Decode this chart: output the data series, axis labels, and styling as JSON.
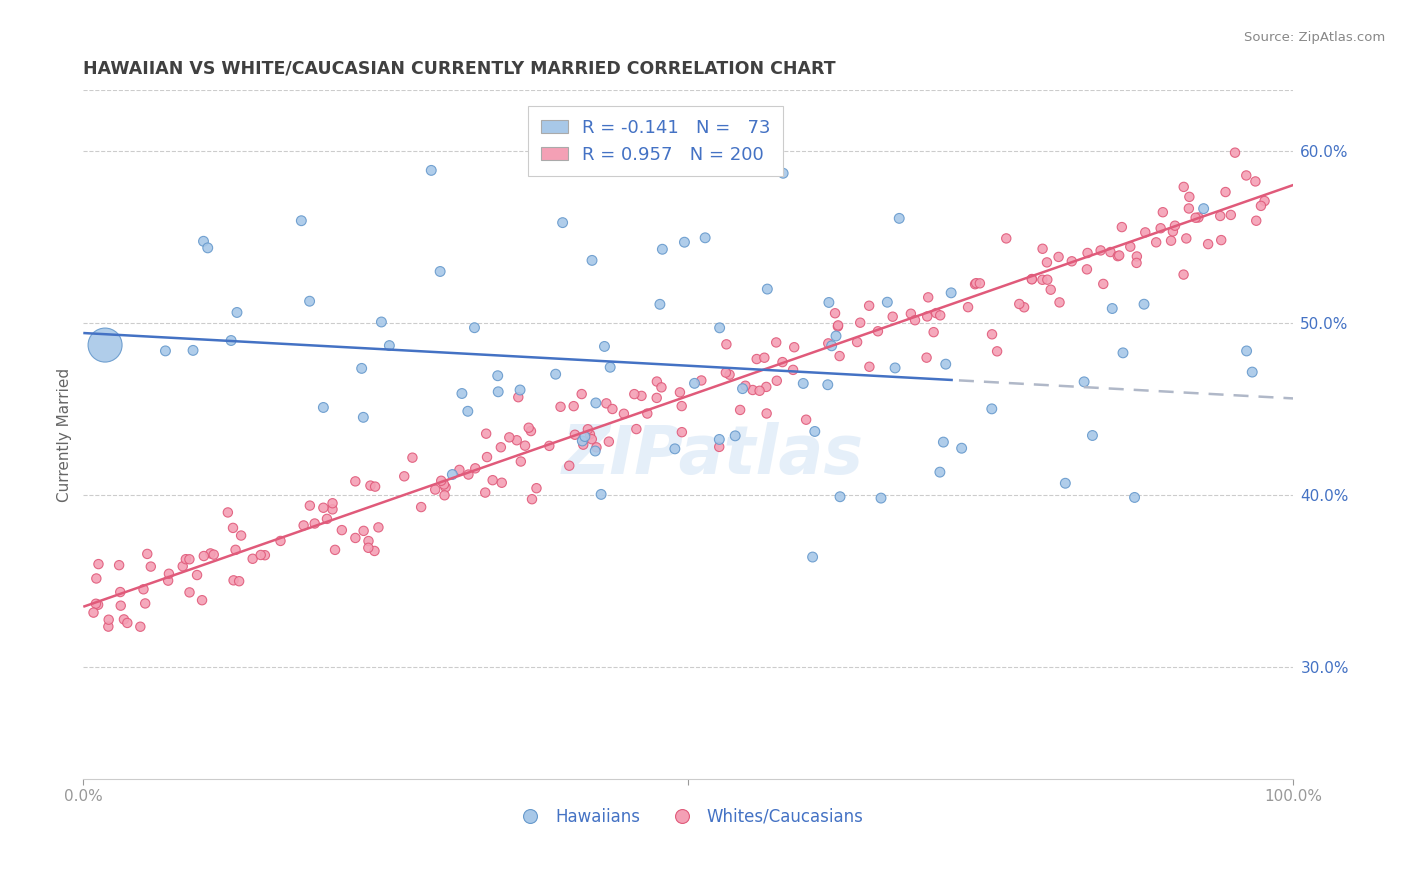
{
  "title": "HAWAIIAN VS WHITE/CAUCASIAN CURRENTLY MARRIED CORRELATION CHART",
  "source": "Source: ZipAtlas.com",
  "ylabel": "Currently Married",
  "xlim": [
    0.0,
    1.0
  ],
  "ylim": [
    0.235,
    0.635
  ],
  "y_tick_labels_right": [
    "30.0%",
    "40.0%",
    "50.0%",
    "60.0%"
  ],
  "y_ticks_right": [
    0.3,
    0.4,
    0.5,
    0.6
  ],
  "blue_fill": "#a8c8e8",
  "blue_edge": "#6699cc",
  "pink_fill": "#f4a0b5",
  "pink_edge": "#e05a7a",
  "blue_line_color": "#4472c4",
  "pink_line_color": "#e05a7a",
  "dashed_line_color": "#b0b8c8",
  "r_blue": -0.141,
  "n_blue": 73,
  "r_pink": 0.957,
  "n_pink": 200,
  "legend_text_color": "#4472c4",
  "background_color": "#ffffff",
  "title_color": "#404040",
  "source_color": "#888888",
  "blue_intercept": 0.494,
  "blue_slope": -0.038,
  "pink_intercept": 0.335,
  "pink_slope": 0.245
}
